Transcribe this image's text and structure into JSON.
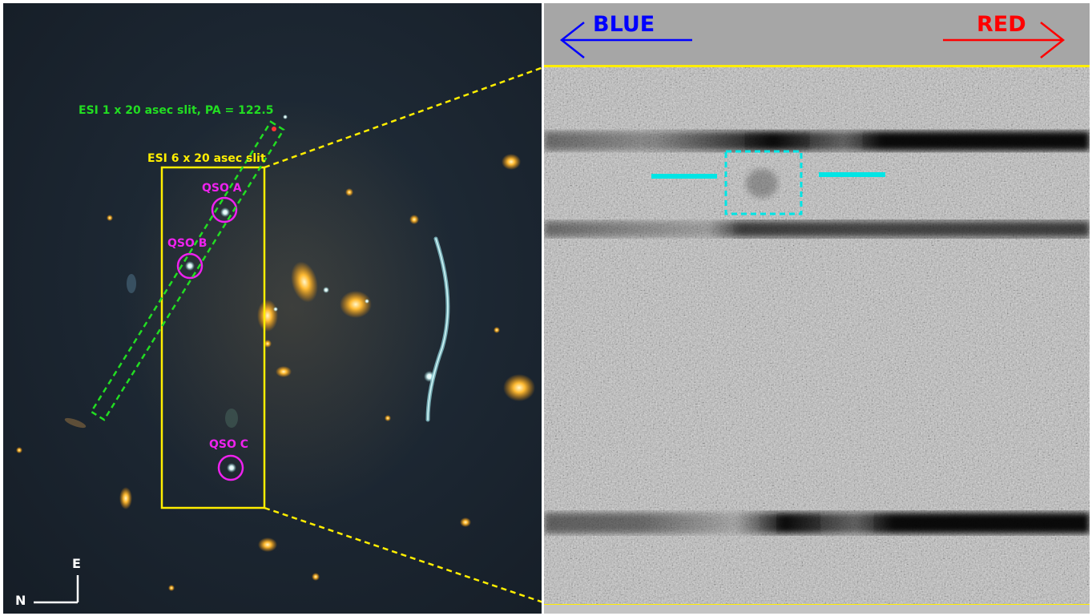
{
  "image_panel": {
    "slit_narrow_label": "ESI 1 x 20 asec slit, PA = 122.5",
    "slit_wide_label": "ESI 6 x 20 asec slit",
    "qso_labels": [
      "QSO A",
      "QSO B",
      "QSO C"
    ],
    "compass": {
      "north": "N",
      "east": "E"
    }
  },
  "spectrum_panel": {
    "blue_label": "BLUE",
    "red_label": "RED"
  },
  "colors": {
    "slit_narrow": "#22dd22",
    "slit_wide": "#ffee00",
    "qso_marker": "#ee22ee",
    "blue": "#0000ff",
    "red": "#ff0000",
    "highlight": "#00e5e5"
  }
}
